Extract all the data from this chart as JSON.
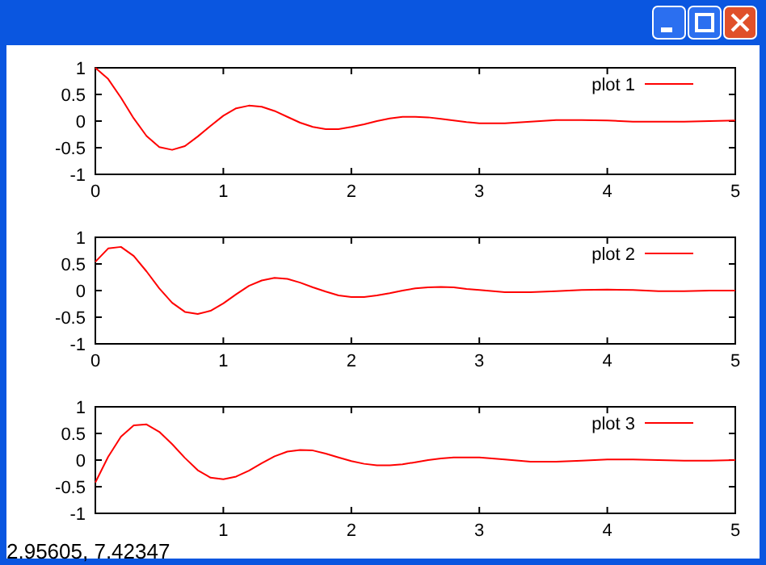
{
  "chart_data": [
    {
      "type": "line",
      "x": [
        0,
        0.1,
        0.2,
        0.3,
        0.4,
        0.5,
        0.6,
        0.7,
        0.8,
        0.9,
        1,
        1.1,
        1.2,
        1.3,
        1.4,
        1.5,
        1.6,
        1.7,
        1.8,
        1.9,
        2,
        2.1,
        2.2,
        2.3,
        2.4,
        2.5,
        2.6,
        2.7,
        2.8,
        2.9,
        3,
        3.2,
        3.4,
        3.6,
        3.8,
        4,
        4.2,
        4.4,
        4.6,
        4.8,
        5
      ],
      "xlim": [
        0,
        5
      ],
      "ylim": [
        -1,
        1
      ],
      "xticks": [
        0,
        1,
        2,
        3,
        4,
        5
      ],
      "yticks": [
        -1,
        -0.5,
        0,
        0.5,
        1
      ],
      "legend": "top right",
      "grid": false,
      "series": [
        {
          "name": "plot 1",
          "color": "#ff0000",
          "values": [
            1,
            0.79,
            0.44,
            0.05,
            -0.28,
            -0.49,
            -0.54,
            -0.47,
            -0.29,
            -0.09,
            0.1,
            0.24,
            0.29,
            0.27,
            0.19,
            0.08,
            -0.03,
            -0.11,
            -0.15,
            -0.15,
            -0.11,
            -0.06,
            0,
            0.05,
            0.08,
            0.08,
            0.07,
            0.04,
            0.01,
            -0.02,
            -0.04,
            -0.04,
            -0.01,
            0.02,
            0.02,
            0.01,
            -0.01,
            -0.01,
            -0.01,
            0,
            0.01
          ]
        }
      ]
    },
    {
      "type": "line",
      "x": [
        0,
        0.1,
        0.2,
        0.3,
        0.4,
        0.5,
        0.6,
        0.7,
        0.8,
        0.9,
        1,
        1.1,
        1.2,
        1.3,
        1.4,
        1.5,
        1.6,
        1.7,
        1.8,
        1.9,
        2,
        2.1,
        2.2,
        2.3,
        2.4,
        2.5,
        2.6,
        2.7,
        2.8,
        2.9,
        3,
        3.2,
        3.4,
        3.6,
        3.8,
        4,
        4.2,
        4.4,
        4.6,
        4.8,
        5
      ],
      "xlim": [
        0,
        5
      ],
      "ylim": [
        -1,
        1
      ],
      "xticks": [
        0,
        1,
        2,
        3,
        4,
        5
      ],
      "yticks": [
        -1,
        -0.5,
        0,
        0.5,
        1
      ],
      "legend": "top right",
      "grid": false,
      "series": [
        {
          "name": "plot 2",
          "color": "#ff0000",
          "values": [
            0.54,
            0.79,
            0.82,
            0.65,
            0.36,
            0.04,
            -0.23,
            -0.4,
            -0.44,
            -0.38,
            -0.24,
            -0.07,
            0.09,
            0.19,
            0.24,
            0.22,
            0.15,
            0.06,
            -0.02,
            -0.09,
            -0.12,
            -0.12,
            -0.09,
            -0.05,
            0,
            0.04,
            0.06,
            0.07,
            0.06,
            0.03,
            0.01,
            -0.03,
            -0.03,
            -0.01,
            0.01,
            0.02,
            0.01,
            -0.01,
            -0.01,
            0,
            0
          ]
        }
      ]
    },
    {
      "type": "line",
      "x": [
        0,
        0.1,
        0.2,
        0.3,
        0.4,
        0.5,
        0.6,
        0.7,
        0.8,
        0.9,
        1,
        1.1,
        1.2,
        1.3,
        1.4,
        1.5,
        1.6,
        1.7,
        1.8,
        1.9,
        2,
        2.1,
        2.2,
        2.3,
        2.4,
        2.5,
        2.6,
        2.7,
        2.8,
        2.9,
        3,
        3.2,
        3.4,
        3.6,
        3.8,
        4,
        4.2,
        4.4,
        4.6,
        4.8,
        5
      ],
      "xlim": [
        0,
        5
      ],
      "ylim": [
        -1,
        1
      ],
      "xticks": [
        {
          "value": 0,
          "label": null
        },
        1,
        2,
        3,
        4,
        5
      ],
      "yticks": [
        -1,
        -0.5,
        0,
        0.5,
        1
      ],
      "legend": "top right",
      "grid": false,
      "annotations": [
        "2.95605, 7.42347"
      ],
      "series": [
        {
          "name": "plot 3",
          "color": "#ff0000",
          "values": [
            -0.42,
            0.06,
            0.44,
            0.65,
            0.67,
            0.53,
            0.3,
            0.04,
            -0.19,
            -0.33,
            -0.36,
            -0.31,
            -0.2,
            -0.06,
            0.07,
            0.16,
            0.19,
            0.18,
            0.12,
            0.05,
            -0.02,
            -0.07,
            -0.1,
            -0.1,
            -0.08,
            -0.04,
            0,
            0.03,
            0.05,
            0.05,
            0.05,
            0.01,
            -0.03,
            -0.03,
            -0.01,
            0.01,
            0.01,
            0,
            -0.01,
            -0.01,
            0
          ]
        }
      ]
    }
  ]
}
